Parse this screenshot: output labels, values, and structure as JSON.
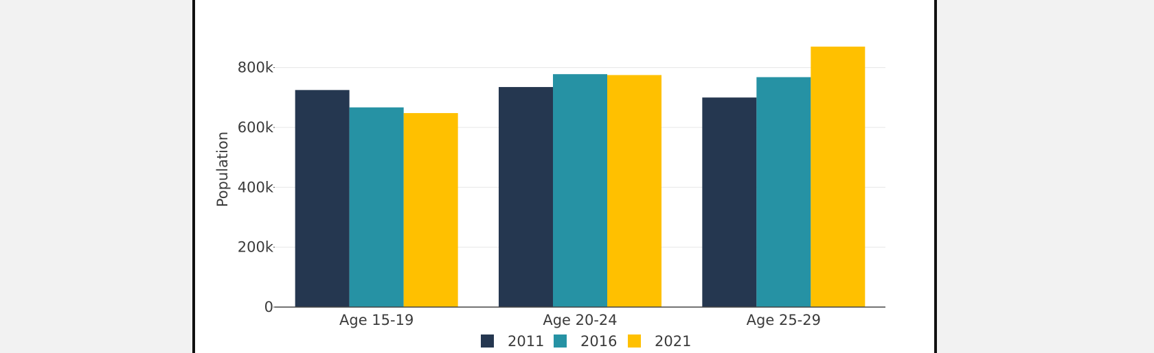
{
  "chart_data": {
    "type": "bar",
    "title": "",
    "xlabel": "",
    "ylabel": "Population",
    "categories": [
      "Age 15-19",
      "Age 20-24",
      "Age 25-29"
    ],
    "series": [
      {
        "name": "2011",
        "color": "#253750",
        "values": [
          725000,
          735000,
          700000
        ]
      },
      {
        "name": "2016",
        "color": "#2692a4",
        "values": [
          667000,
          778000,
          768000
        ]
      },
      {
        "name": "2021",
        "color": "#ffc000",
        "values": [
          648000,
          775000,
          870000
        ]
      }
    ],
    "ylim": [
      0,
      870000
    ],
    "yticks": [
      0,
      200000,
      400000,
      600000,
      800000
    ],
    "ytick_labels": [
      "0",
      "200k",
      "400k",
      "600k",
      "800k"
    ],
    "grid": true,
    "legend": "bottom-center"
  }
}
